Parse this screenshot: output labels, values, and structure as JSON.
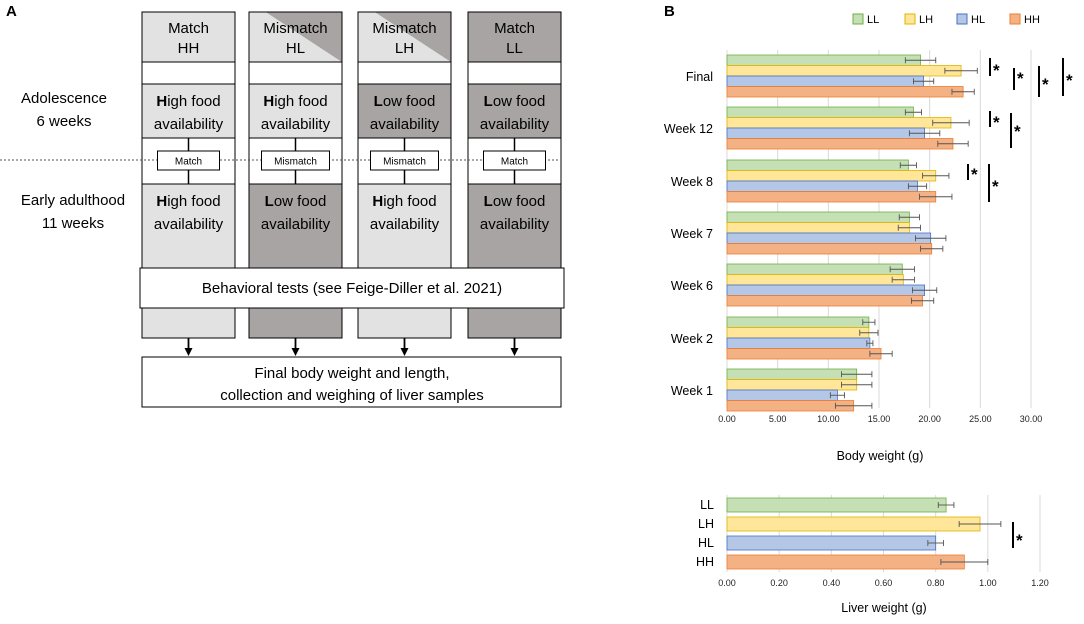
{
  "panel_a": {
    "letter": "A",
    "columns": [
      {
        "label1": "Match",
        "label2": "HH",
        "adol_bold": "H",
        "adol_rest": "igh food",
        "adol_line2": "availability",
        "bridge": "Match",
        "adult_bold": "H",
        "adult_rest": "igh food",
        "adult_line2": "availability",
        "adol_color": "#e2e2e2",
        "adult_color": "#e2e2e2"
      },
      {
        "label1": "Mismatch",
        "label2": "HL",
        "adol_bold": "H",
        "adol_rest": "igh food",
        "adol_line2": "availability",
        "bridge": "Mismatch",
        "adult_bold": "L",
        "adult_rest": "ow food",
        "adult_line2": "availability",
        "adol_color": "#e2e2e2",
        "adult_color": "#a8a4a4"
      },
      {
        "label1": "Mismatch",
        "label2": "LH",
        "adol_bold": "L",
        "adol_rest": "ow food",
        "adol_line2": "availability",
        "bridge": "Mismatch",
        "adult_bold": "H",
        "adult_rest": "igh food",
        "adult_line2": "availability",
        "adol_color": "#a8a4a4",
        "adult_color": "#e2e2e2"
      },
      {
        "label1": "Match",
        "label2": "LL",
        "adol_bold": "L",
        "adol_rest": "ow food",
        "adol_line2": "availability",
        "bridge": "Match",
        "adult_bold": "L",
        "adult_rest": "ow food",
        "adult_line2": "availability",
        "adol_color": "#a8a4a4",
        "adult_color": "#a8a4a4"
      }
    ],
    "phase1_line1": "Adolescence",
    "phase1_line2": "6 weeks",
    "phase2_line1": "Early adulthood",
    "phase2_line2": "11 weeks",
    "behavioral": "Behavioral tests (see Feige-Diller et al. 2021)",
    "final_line1": "Final body weight and length,",
    "final_line2": "collection and weighing of liver samples"
  },
  "panel_b_letter": "B",
  "legend": [
    "LL",
    "LH",
    "HL",
    "HH"
  ],
  "colors": {
    "LL": {
      "fill": "#c5e0b4",
      "stroke": "#70ad47"
    },
    "LH": {
      "fill": "#ffe699",
      "stroke": "#e0b400"
    },
    "HL": {
      "fill": "#b4c7e7",
      "stroke": "#4472c4"
    },
    "HH": {
      "fill": "#f4b183",
      "stroke": "#ed7d31"
    },
    "light_gray": "#e2e2e2",
    "dark_gray": "#a8a4a4"
  },
  "chart_data": [
    {
      "type": "bar",
      "orientation": "horizontal",
      "categories": [
        "Final",
        "Week 12",
        "Week 8",
        "Week 7",
        "Week 6",
        "Week 2",
        "Week 1"
      ],
      "series": [
        {
          "name": "LL",
          "values": [
            19.1,
            18.4,
            17.9,
            18.0,
            17.3,
            14.0,
            12.8
          ],
          "errors": [
            1.5,
            0.8,
            0.8,
            1.0,
            1.2,
            0.6,
            1.5
          ]
        },
        {
          "name": "LH",
          "values": [
            23.1,
            22.1,
            20.6,
            18.0,
            17.4,
            14.0,
            12.8
          ],
          "errors": [
            1.6,
            1.8,
            1.3,
            1.1,
            1.1,
            0.9,
            1.5
          ]
        },
        {
          "name": "HL",
          "values": [
            19.4,
            19.5,
            18.8,
            20.1,
            19.5,
            14.1,
            10.9
          ],
          "errors": [
            1.0,
            1.5,
            0.9,
            1.5,
            1.2,
            0.3,
            0.7
          ]
        },
        {
          "name": "HH",
          "values": [
            23.3,
            22.3,
            20.6,
            20.2,
            19.3,
            15.2,
            12.5
          ],
          "errors": [
            1.1,
            1.5,
            1.6,
            1.1,
            1.1,
            1.1,
            1.8
          ]
        }
      ],
      "xlabel": "Body weight (g)",
      "xlim": [
        0,
        30
      ],
      "ticks": [
        "0.00",
        "5.00",
        "10.00",
        "15.00",
        "20.00",
        "25.00",
        "30.00"
      ],
      "significance": "*"
    },
    {
      "type": "bar",
      "orientation": "horizontal",
      "categories": [
        "LL",
        "LH",
        "HL",
        "HH"
      ],
      "values": [
        0.84,
        0.97,
        0.8,
        0.91
      ],
      "errors": [
        0.03,
        0.08,
        0.03,
        0.09
      ],
      "xlabel": "Liver weight (g)",
      "xlim": [
        0,
        1.2
      ],
      "ticks": [
        "0.00",
        "0.20",
        "0.40",
        "0.60",
        "0.80",
        "1.00",
        "1.20"
      ],
      "significance": "*"
    }
  ]
}
